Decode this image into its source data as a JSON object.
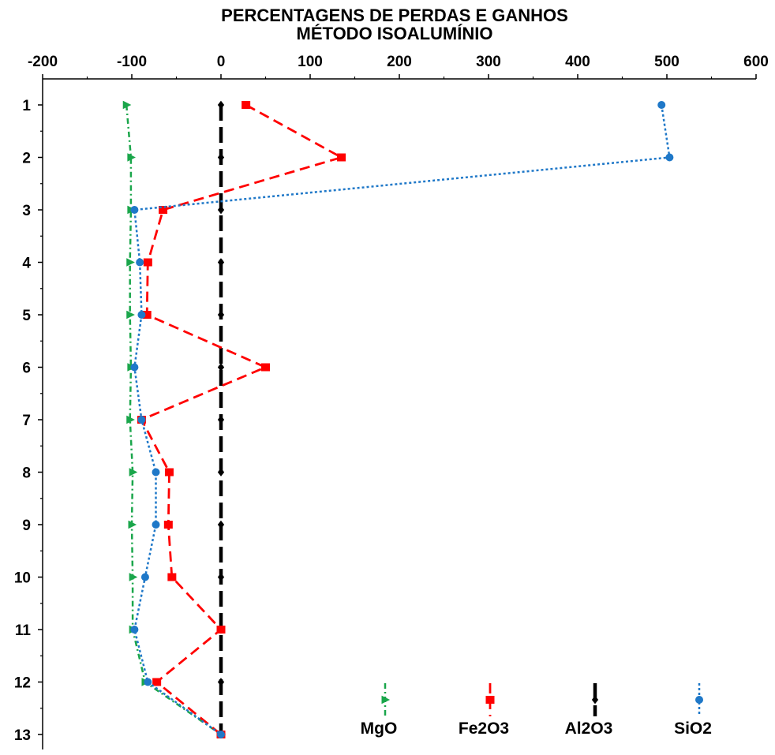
{
  "chart_data": {
    "type": "line",
    "title_lines": [
      "PERCENTAGENS DE PERDAS E GANHOS",
      "MÉTODO ISOALUMÍNIO"
    ],
    "x_axis": {
      "position": "top",
      "range": [
        -200,
        600
      ],
      "ticks": [
        -200,
        -100,
        0,
        100,
        200,
        300,
        400,
        500,
        600
      ],
      "tick_labels": [
        "-200",
        "-100",
        "0",
        "100",
        "200",
        "300",
        "400",
        "500",
        "600"
      ]
    },
    "y_axis": {
      "reversed": true,
      "range": [
        0.5,
        13
      ],
      "ticks": [
        1,
        2,
        3,
        4,
        5,
        6,
        7,
        8,
        9,
        10,
        11,
        12,
        13
      ],
      "tick_labels": [
        "1",
        "2",
        "3",
        "4",
        "5",
        "6",
        "7",
        "8",
        "9",
        "10",
        "11",
        "12",
        "13"
      ]
    },
    "grid": false,
    "legend_position": "bottom-right",
    "series": [
      {
        "name": "MgO",
        "color": "#1aa64b",
        "dash": "dash-dot",
        "marker": "triangle-right",
        "points": [
          [
            -106,
            1
          ],
          [
            -101,
            2
          ],
          [
            -101,
            3
          ],
          [
            -102,
            4
          ],
          [
            -102,
            5
          ],
          [
            -101,
            6
          ],
          [
            -102,
            7
          ],
          [
            -99,
            8
          ],
          [
            -100,
            9
          ],
          [
            -99,
            10
          ],
          [
            -99,
            11
          ],
          [
            -85,
            12
          ],
          [
            0,
            13
          ]
        ]
      },
      {
        "name": "Fe2O3",
        "color": "#ff0000",
        "dash": "dashed",
        "marker": "square",
        "points": [
          [
            28,
            1
          ],
          [
            135,
            2
          ],
          [
            -65,
            3
          ],
          [
            -82,
            4
          ],
          [
            -83,
            5
          ],
          [
            50,
            6
          ],
          [
            -89,
            7
          ],
          [
            -58,
            8
          ],
          [
            -59,
            9
          ],
          [
            -55,
            10
          ],
          [
            0,
            11
          ],
          [
            -72,
            12
          ],
          [
            0,
            13
          ]
        ]
      },
      {
        "name": "Al2O3",
        "color": "#000000",
        "dash": "long-dash",
        "marker": "diamond",
        "points": [
          [
            0,
            1
          ],
          [
            0,
            2
          ],
          [
            0,
            3
          ],
          [
            0,
            4
          ],
          [
            0,
            5
          ],
          [
            0,
            6
          ],
          [
            0,
            7
          ],
          [
            0,
            8
          ],
          [
            0,
            9
          ],
          [
            0,
            10
          ],
          [
            0,
            11
          ],
          [
            0,
            12
          ],
          [
            0,
            13
          ]
        ]
      },
      {
        "name": "SiO2",
        "color": "#1f78c8",
        "dash": "dotted",
        "marker": "circle",
        "points": [
          [
            494,
            1
          ],
          [
            503,
            2
          ],
          [
            -97,
            3
          ],
          [
            -91,
            4
          ],
          [
            -89,
            5
          ],
          [
            -97,
            6
          ],
          [
            -89,
            7
          ],
          [
            -73,
            8
          ],
          [
            -73,
            9
          ],
          [
            -85,
            10
          ],
          [
            -97,
            11
          ],
          [
            -82,
            12
          ],
          [
            0,
            13
          ]
        ]
      }
    ]
  }
}
